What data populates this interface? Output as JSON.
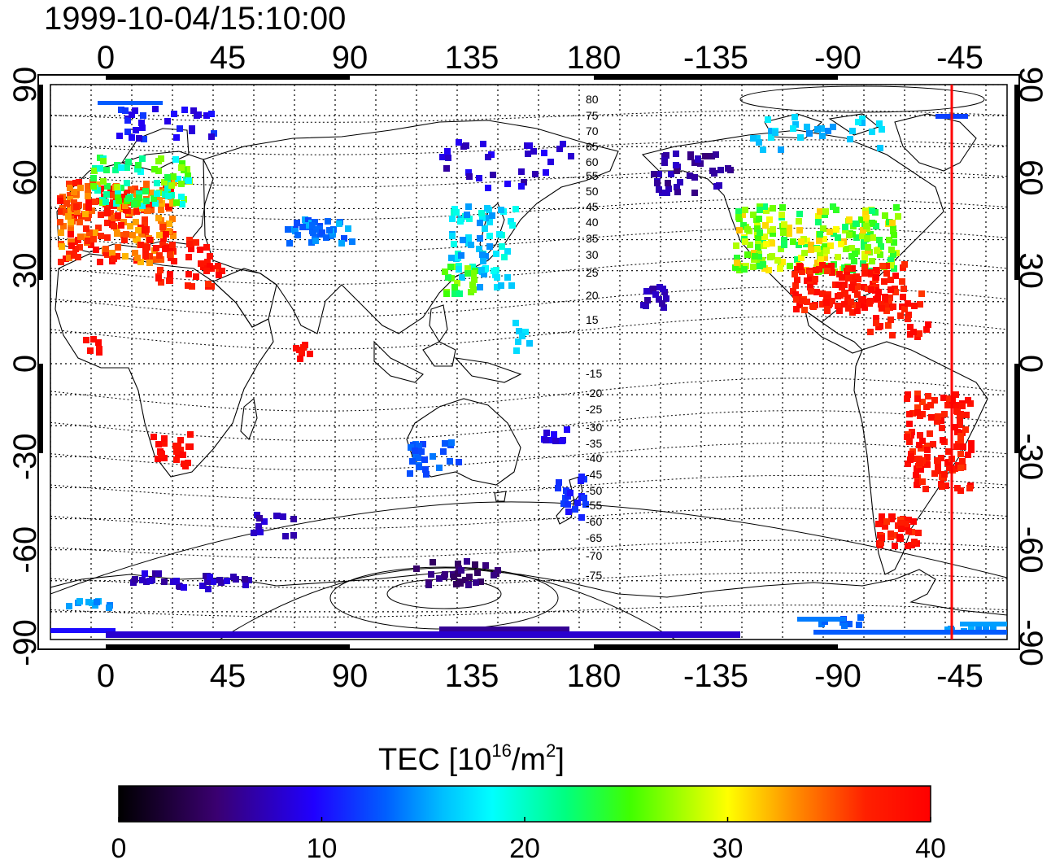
{
  "title": "1999-10-04/15:10:00",
  "map": {
    "top_lon_labels": [
      "0",
      "45",
      "90",
      "135",
      "180",
      "-135",
      "-90",
      "-45"
    ],
    "bottom_lon_labels": [
      "0",
      "45",
      "90",
      "135",
      "180",
      "-135",
      "-90",
      "-45"
    ],
    "left_lat_labels": [
      "90",
      "60",
      "30",
      "0",
      "-30",
      "-60",
      "-90"
    ],
    "right_lat_labels": [
      "90",
      "60",
      "30",
      "0",
      "-30",
      "-60",
      "-90"
    ],
    "contour_labels": [
      "80",
      "75",
      "70",
      "65",
      "60",
      "55",
      "50",
      "45",
      "40",
      "35",
      "30",
      "25",
      "20",
      "15",
      "-15",
      "-20",
      "-25",
      "-30",
      "-35",
      "-40",
      "-45",
      "-50",
      "-55",
      "-60",
      "-65",
      "-70",
      "-75"
    ],
    "marker_line_color": "#ff0000"
  },
  "colorbar": {
    "label_main": "TEC  [10",
    "label_sup1": "16",
    "label_mid": "/m",
    "label_sup2": "2",
    "label_end": "]",
    "ticks": [
      "0",
      "10",
      "20",
      "30",
      "40"
    ],
    "range": [
      0,
      40
    ]
  }
}
